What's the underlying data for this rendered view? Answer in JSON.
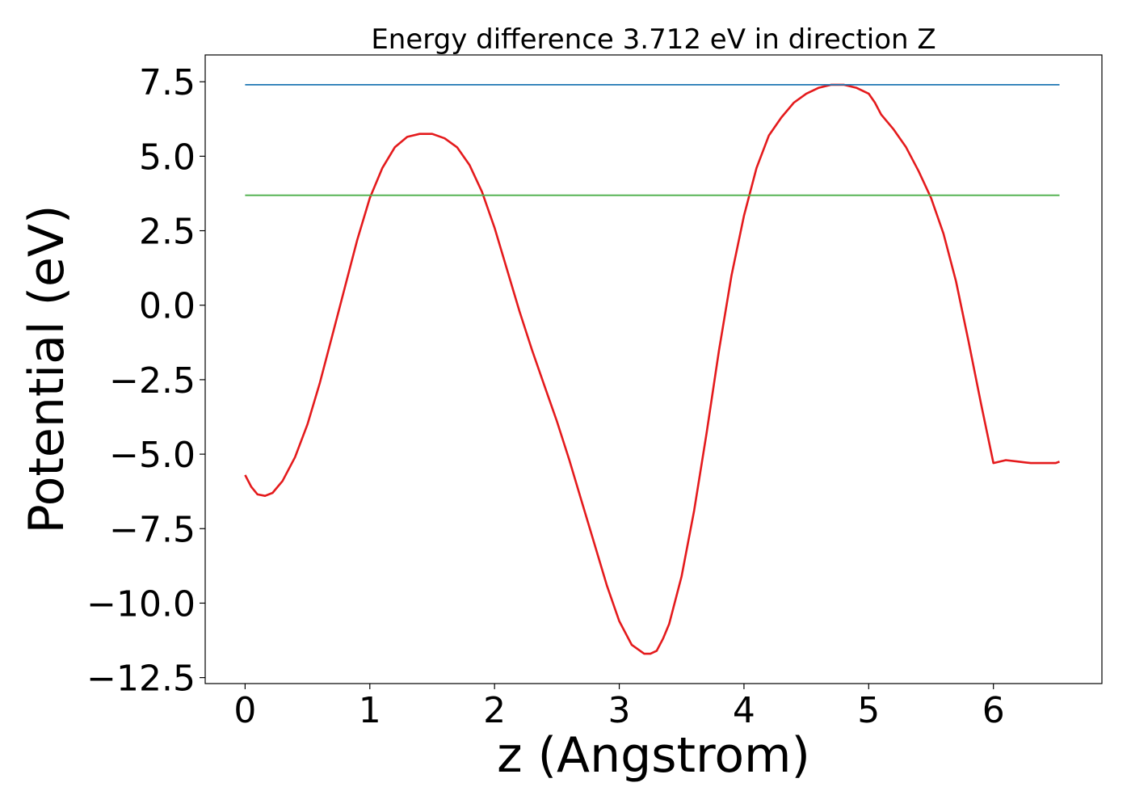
{
  "chart_data": {
    "type": "line",
    "title": "Energy difference 3.712 eV in direction Z",
    "xlabel": "z (Angstrom)",
    "ylabel": "Potential (eV)",
    "xlim": [
      -0.32,
      6.87
    ],
    "ylim": [
      -12.7,
      8.4
    ],
    "xticks": [
      0,
      1,
      2,
      3,
      4,
      5,
      6
    ],
    "xtick_labels": [
      "0",
      "1",
      "2",
      "3",
      "4",
      "5",
      "6"
    ],
    "yticks": [
      7.5,
      5.0,
      2.5,
      0.0,
      -2.5,
      -5.0,
      -7.5,
      -10.0,
      -12.5
    ],
    "ytick_labels": [
      "7.5",
      "5.0",
      "2.5",
      "0.0",
      "−2.5",
      "−5.0",
      "−7.5",
      "−10.0",
      "−12.5"
    ],
    "grid": false,
    "legend": "none",
    "series": [
      {
        "color": "#e41a1c",
        "x": [
          0.0,
          0.05,
          0.1,
          0.16,
          0.22,
          0.3,
          0.4,
          0.5,
          0.6,
          0.7,
          0.8,
          0.9,
          1.0,
          1.1,
          1.2,
          1.3,
          1.4,
          1.5,
          1.6,
          1.7,
          1.8,
          1.9,
          2.0,
          2.1,
          2.2,
          2.3,
          2.4,
          2.5,
          2.6,
          2.7,
          2.8,
          2.9,
          3.0,
          3.1,
          3.2,
          3.25,
          3.3,
          3.35,
          3.4,
          3.5,
          3.6,
          3.7,
          3.8,
          3.9,
          4.0,
          4.1,
          4.2,
          4.3,
          4.4,
          4.5,
          4.6,
          4.7,
          4.8,
          4.9,
          5.0,
          5.05,
          5.1,
          5.2,
          5.3,
          5.4,
          5.5,
          5.6,
          5.7,
          5.8,
          5.9,
          6.0,
          6.1,
          6.2,
          6.3,
          6.4,
          6.5,
          6.53
        ],
        "y": [
          -5.7,
          -6.1,
          -6.35,
          -6.4,
          -6.3,
          -5.9,
          -5.1,
          -4.0,
          -2.6,
          -1.0,
          0.6,
          2.2,
          3.6,
          4.6,
          5.3,
          5.65,
          5.75,
          5.75,
          5.6,
          5.3,
          4.7,
          3.8,
          2.6,
          1.2,
          -0.2,
          -1.5,
          -2.7,
          -3.9,
          -5.2,
          -6.6,
          -8.0,
          -9.4,
          -10.6,
          -11.4,
          -11.7,
          -11.7,
          -11.6,
          -11.2,
          -10.7,
          -9.1,
          -6.9,
          -4.3,
          -1.5,
          1.0,
          3.0,
          4.6,
          5.7,
          6.3,
          6.8,
          7.1,
          7.3,
          7.4,
          7.4,
          7.3,
          7.1,
          6.8,
          6.4,
          5.9,
          5.3,
          4.5,
          3.6,
          2.4,
          0.8,
          -1.2,
          -3.3,
          -5.3,
          -5.2,
          -5.25,
          -5.3,
          -5.3,
          -5.3,
          -5.25
        ]
      },
      {
        "color": "#1f77b4",
        "x": [
          0.0,
          6.53
        ],
        "y": [
          7.4,
          7.4
        ]
      },
      {
        "color": "#4daf4a",
        "x": [
          0.0,
          6.53
        ],
        "y": [
          3.69,
          3.69
        ]
      }
    ]
  }
}
